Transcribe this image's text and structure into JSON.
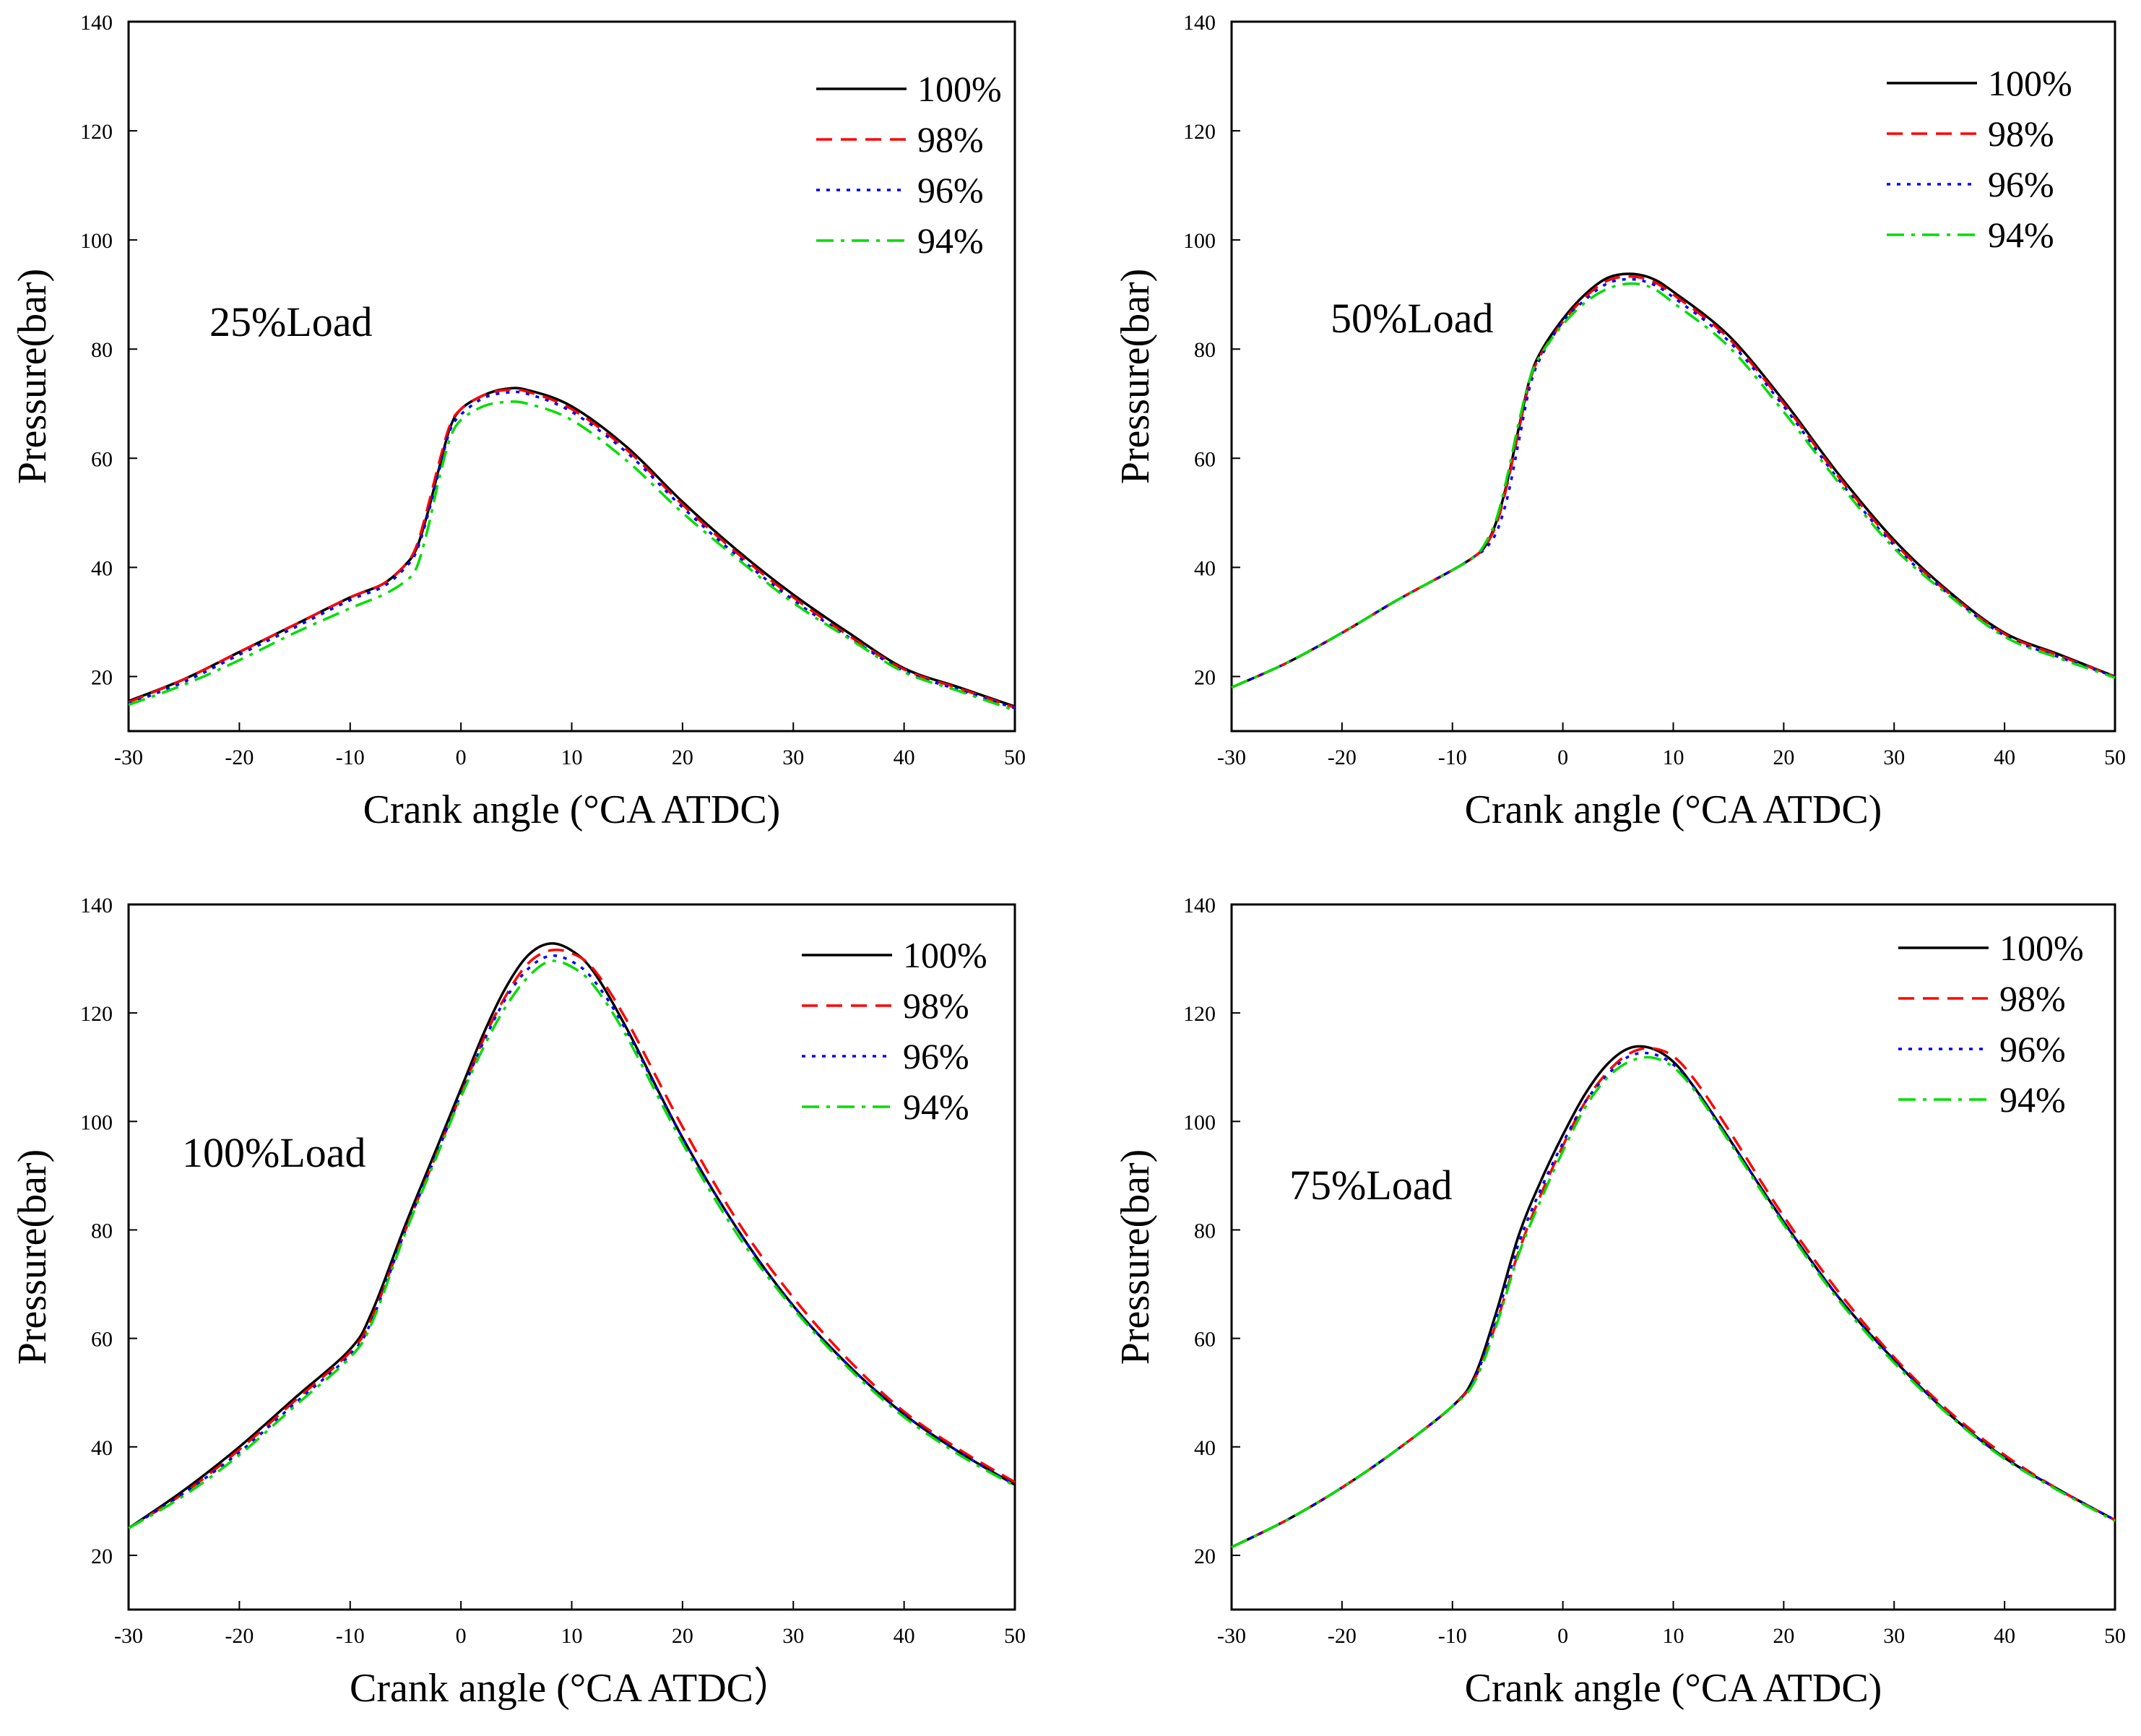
{
  "chart_data": [
    {
      "type": "line",
      "annotation": "25%Load",
      "xlabel": "Crank angle (°CA ATDC)",
      "ylabel": "Pressure(bar)",
      "xlim": [
        -30,
        50
      ],
      "ylim": [
        10,
        140
      ],
      "xticks": [
        "-30",
        "-20",
        "-10",
        "0",
        "10",
        "20",
        "30",
        "40",
        "50"
      ],
      "yticks": [
        "20",
        "40",
        "60",
        "80",
        "100",
        "120",
        "140"
      ],
      "legend_position": "top-right",
      "series": [
        {
          "name": "100%",
          "color": "#000000",
          "dash": "solid",
          "x": [
            -30,
            -25,
            -20,
            -15,
            -10,
            -7,
            -5,
            -4,
            -3,
            -2,
            -1,
            0,
            2,
            4,
            6,
            10,
            15,
            20,
            25,
            30,
            35,
            40,
            45,
            50
          ],
          "y": [
            15.5,
            19.5,
            24.5,
            29.5,
            34.5,
            37.0,
            40.5,
            43.5,
            50.0,
            58.0,
            65.5,
            69.0,
            71.5,
            72.7,
            72.5,
            69.5,
            62.0,
            52.0,
            43.0,
            35.0,
            28.0,
            21.5,
            18.0,
            14.5
          ]
        },
        {
          "name": "98%",
          "color": "#ff0000",
          "dash": "dashed",
          "x": [
            -30,
            -25,
            -20,
            -15,
            -10,
            -7,
            -5,
            -4,
            -3,
            -2,
            -1,
            0,
            2,
            4,
            6,
            10,
            15,
            20,
            25,
            30,
            35,
            40,
            45,
            50
          ],
          "y": [
            15.3,
            19.5,
            24.5,
            29.5,
            34.5,
            37.0,
            40.5,
            44.0,
            51.0,
            59.0,
            66.0,
            69.0,
            71.5,
            72.5,
            72.2,
            69.0,
            61.5,
            51.5,
            42.5,
            34.5,
            27.5,
            21.3,
            17.8,
            14.3
          ]
        },
        {
          "name": "96%",
          "color": "#0000ff",
          "dash": "dotted",
          "x": [
            -30,
            -25,
            -20,
            -15,
            -10,
            -7,
            -5,
            -4,
            -3,
            -2,
            -1,
            0,
            2,
            4,
            6,
            10,
            15,
            20,
            25,
            30,
            35,
            40,
            45,
            50
          ],
          "y": [
            15.0,
            19.0,
            24.0,
            29.0,
            34.0,
            36.5,
            40.0,
            43.0,
            49.5,
            57.5,
            65.0,
            68.0,
            71.0,
            72.0,
            71.8,
            68.5,
            61.0,
            51.0,
            42.0,
            34.0,
            27.2,
            21.0,
            17.5,
            14.2
          ]
        },
        {
          "name": "94%",
          "color": "#00dd00",
          "dash": "dashdot",
          "x": [
            -30,
            -25,
            -20,
            -15,
            -10,
            -7,
            -5,
            -4,
            -3,
            -2,
            -1,
            0,
            2,
            4,
            6,
            10,
            15,
            20,
            25,
            30,
            35,
            40,
            45,
            50
          ],
          "y": [
            14.8,
            18.5,
            23.0,
            28.0,
            32.5,
            35.0,
            37.5,
            40.0,
            47.0,
            56.0,
            63.5,
            67.0,
            69.5,
            70.3,
            70.0,
            67.0,
            59.5,
            50.0,
            41.5,
            33.5,
            27.0,
            20.8,
            17.3,
            13.8
          ]
        }
      ]
    },
    {
      "type": "line",
      "annotation": "50%Load",
      "xlabel": "Crank angle (°CA ATDC)",
      "ylabel": "Pressure(bar)",
      "xlim": [
        -30,
        50
      ],
      "ylim": [
        10,
        140
      ],
      "xticks": [
        "-30",
        "-20",
        "-10",
        "0",
        "10",
        "20",
        "30",
        "40",
        "50"
      ],
      "yticks": [
        "20",
        "40",
        "60",
        "80",
        "100",
        "120",
        "140"
      ],
      "legend_position": "top-right",
      "series": [
        {
          "name": "100%",
          "color": "#000000",
          "dash": "solid",
          "x": [
            -30,
            -25,
            -20,
            -15,
            -10,
            -8,
            -7,
            -6,
            -5,
            -4,
            -3,
            -2,
            0,
            2,
            4,
            6,
            8,
            10,
            15,
            20,
            25,
            30,
            35,
            40,
            45,
            50
          ],
          "y": [
            18.0,
            22.5,
            28.0,
            34.0,
            39.5,
            42.0,
            44.0,
            48.5,
            56.0,
            65.5,
            74.5,
            79.5,
            85.5,
            90.0,
            93.0,
            93.8,
            93.0,
            90.5,
            82.5,
            70.5,
            57.0,
            45.0,
            35.5,
            28.0,
            24.0,
            20.0
          ]
        },
        {
          "name": "98%",
          "color": "#ff0000",
          "dash": "dashed",
          "x": [
            -30,
            -25,
            -20,
            -15,
            -10,
            -8,
            -7,
            -6,
            -5,
            -4,
            -3,
            -2,
            0,
            2,
            4,
            6,
            8,
            10,
            15,
            20,
            25,
            30,
            35,
            40,
            45,
            50
          ],
          "y": [
            18.0,
            22.5,
            28.0,
            34.0,
            39.5,
            42.0,
            44.0,
            48.0,
            55.5,
            65.0,
            74.0,
            79.0,
            85.0,
            89.5,
            92.5,
            93.3,
            92.5,
            90.0,
            82.0,
            70.0,
            56.5,
            44.5,
            35.2,
            27.8,
            23.8,
            20.0
          ]
        },
        {
          "name": "96%",
          "color": "#0000ff",
          "dash": "dotted",
          "x": [
            -30,
            -25,
            -20,
            -15,
            -10,
            -8,
            -7,
            -6,
            -5,
            -4,
            -3,
            -2,
            0,
            2,
            4,
            6,
            8,
            10,
            15,
            20,
            25,
            30,
            35,
            40,
            45,
            50
          ],
          "y": [
            18.0,
            22.5,
            28.0,
            34.0,
            39.5,
            42.0,
            43.5,
            46.5,
            53.0,
            63.0,
            73.0,
            78.5,
            85.0,
            89.0,
            92.0,
            92.8,
            92.0,
            89.5,
            81.5,
            69.5,
            56.0,
            44.0,
            35.0,
            27.5,
            23.5,
            20.0
          ]
        },
        {
          "name": "94%",
          "color": "#00dd00",
          "dash": "dashdot",
          "x": [
            -30,
            -25,
            -20,
            -15,
            -10,
            -8,
            -7,
            -6,
            -5,
            -4,
            -3,
            -2,
            0,
            2,
            4,
            6,
            8,
            10,
            15,
            20,
            25,
            30,
            35,
            40,
            45,
            50
          ],
          "y": [
            18.0,
            22.5,
            28.0,
            34.0,
            39.5,
            42.0,
            44.5,
            49.0,
            57.0,
            66.5,
            74.5,
            79.0,
            84.5,
            88.5,
            91.0,
            92.0,
            91.3,
            88.5,
            80.5,
            68.5,
            55.5,
            43.5,
            34.8,
            27.3,
            23.3,
            19.8
          ]
        }
      ]
    },
    {
      "type": "line",
      "annotation": "100%Load",
      "xlabel": "Crank angle (°CA ATDC）",
      "ylabel": "Pressure(bar)",
      "xlim": [
        -30,
        50
      ],
      "ylim": [
        10,
        140
      ],
      "xticks": [
        "-30",
        "-20",
        "-10",
        "0",
        "10",
        "20",
        "30",
        "40",
        "50"
      ],
      "yticks": [
        "20",
        "40",
        "60",
        "80",
        "100",
        "120",
        "140"
      ],
      "legend_position": "top-right",
      "series": [
        {
          "name": "100%",
          "color": "#000000",
          "dash": "solid",
          "x": [
            -30,
            -25,
            -20,
            -15,
            -10,
            -8,
            -5,
            -2,
            0,
            2,
            4,
            6,
            8,
            10,
            12,
            15,
            20,
            25,
            30,
            35,
            40,
            45,
            50
          ],
          "y": [
            25.0,
            32.0,
            40.0,
            49.0,
            58.0,
            65.0,
            81.0,
            96.0,
            106.0,
            116.0,
            124.5,
            130.5,
            132.8,
            131.5,
            127.5,
            117.0,
            97.0,
            80.0,
            66.0,
            55.0,
            46.0,
            39.0,
            33.0
          ]
        },
        {
          "name": "98%",
          "color": "#ff0000",
          "dash": "dashed",
          "x": [
            -30,
            -25,
            -20,
            -15,
            -10,
            -8,
            -5,
            -2,
            0,
            2,
            4,
            6,
            8,
            10,
            12,
            15,
            20,
            25,
            30,
            35,
            40,
            45,
            50
          ],
          "y": [
            25.0,
            31.5,
            39.5,
            48.5,
            57.5,
            64.0,
            80.0,
            95.0,
            105.0,
            115.0,
            123.0,
            129.0,
            131.5,
            131.0,
            128.0,
            118.5,
            99.0,
            81.5,
            67.5,
            56.0,
            46.5,
            39.5,
            33.5
          ]
        },
        {
          "name": "96%",
          "color": "#0000ff",
          "dash": "dotted",
          "x": [
            -30,
            -25,
            -20,
            -15,
            -10,
            -8,
            -5,
            -2,
            0,
            2,
            4,
            6,
            8,
            10,
            12,
            15,
            20,
            25,
            30,
            35,
            40,
            45,
            50
          ],
          "y": [
            25.0,
            31.5,
            39.0,
            48.0,
            57.0,
            63.5,
            80.0,
            95.0,
            105.0,
            114.5,
            122.5,
            128.0,
            130.5,
            129.5,
            126.0,
            116.5,
            97.0,
            80.0,
            66.0,
            55.0,
            46.0,
            39.0,
            33.0
          ]
        },
        {
          "name": "94%",
          "color": "#00dd00",
          "dash": "dashdot",
          "x": [
            -30,
            -25,
            -20,
            -15,
            -10,
            -8,
            -5,
            -2,
            0,
            2,
            4,
            6,
            8,
            10,
            12,
            15,
            20,
            25,
            30,
            35,
            40,
            45,
            50
          ],
          "y": [
            25.0,
            31.0,
            38.5,
            47.5,
            56.5,
            63.0,
            79.5,
            94.5,
            104.5,
            113.5,
            121.0,
            126.5,
            129.5,
            128.5,
            125.0,
            115.5,
            96.0,
            79.0,
            65.5,
            54.5,
            45.5,
            38.5,
            32.8
          ]
        }
      ]
    },
    {
      "type": "line",
      "annotation": "75%Load",
      "xlabel": "Crank angle (°CA ATDC)",
      "ylabel": "Pressure(bar)",
      "xlim": [
        -30,
        50
      ],
      "ylim": [
        10,
        140
      ],
      "xticks": [
        "-30",
        "-20",
        "-10",
        "0",
        "10",
        "20",
        "30",
        "40",
        "50"
      ],
      "yticks": [
        "20",
        "40",
        "60",
        "80",
        "100",
        "120",
        "140"
      ],
      "legend_position": "top-right",
      "series": [
        {
          "name": "100%",
          "color": "#000000",
          "dash": "solid",
          "x": [
            -30,
            -25,
            -20,
            -15,
            -10,
            -8,
            -6,
            -4,
            -2,
            0,
            2,
            4,
            6,
            8,
            10,
            12,
            15,
            20,
            25,
            30,
            35,
            40,
            45,
            50
          ],
          "y": [
            21.5,
            26.5,
            32.5,
            39.5,
            47.5,
            53.0,
            65.0,
            79.0,
            89.0,
            97.5,
            105.0,
            110.5,
            113.5,
            113.5,
            111.0,
            106.0,
            97.0,
            81.5,
            67.5,
            56.0,
            46.0,
            38.0,
            32.0,
            26.5
          ]
        },
        {
          "name": "98%",
          "color": "#ff0000",
          "dash": "dashed",
          "x": [
            -30,
            -25,
            -20,
            -15,
            -10,
            -8,
            -6,
            -4,
            -2,
            0,
            2,
            4,
            6,
            8,
            10,
            12,
            15,
            20,
            25,
            30,
            35,
            40,
            45,
            50
          ],
          "y": [
            21.5,
            26.5,
            32.5,
            39.5,
            47.5,
            52.5,
            63.0,
            76.0,
            86.5,
            95.5,
            103.5,
            109.0,
            112.5,
            113.5,
            112.0,
            107.5,
            98.5,
            82.5,
            68.5,
            56.5,
            46.5,
            38.5,
            32.0,
            26.5
          ]
        },
        {
          "name": "96%",
          "color": "#0000ff",
          "dash": "dotted",
          "x": [
            -30,
            -25,
            -20,
            -15,
            -10,
            -8,
            -6,
            -4,
            -2,
            0,
            2,
            4,
            6,
            8,
            10,
            12,
            15,
            20,
            25,
            30,
            35,
            40,
            45,
            50
          ],
          "y": [
            21.5,
            26.5,
            32.5,
            39.5,
            47.5,
            52.5,
            64.0,
            77.5,
            87.5,
            96.0,
            103.5,
            108.5,
            112.0,
            112.5,
            110.5,
            106.0,
            97.0,
            81.5,
            67.5,
            56.0,
            46.0,
            38.0,
            32.0,
            26.5
          ]
        },
        {
          "name": "94%",
          "color": "#00dd00",
          "dash": "dashdot",
          "x": [
            -30,
            -25,
            -20,
            -15,
            -10,
            -8,
            -6,
            -4,
            -2,
            0,
            2,
            4,
            6,
            8,
            10,
            12,
            15,
            20,
            25,
            30,
            35,
            40,
            45,
            50
          ],
          "y": [
            21.5,
            26.5,
            32.5,
            39.5,
            47.5,
            52.0,
            62.5,
            75.5,
            85.5,
            94.5,
            102.5,
            108.0,
            111.0,
            111.8,
            110.0,
            105.5,
            96.5,
            81.0,
            67.0,
            55.5,
            45.8,
            37.8,
            31.8,
            26.3
          ]
        }
      ]
    }
  ]
}
